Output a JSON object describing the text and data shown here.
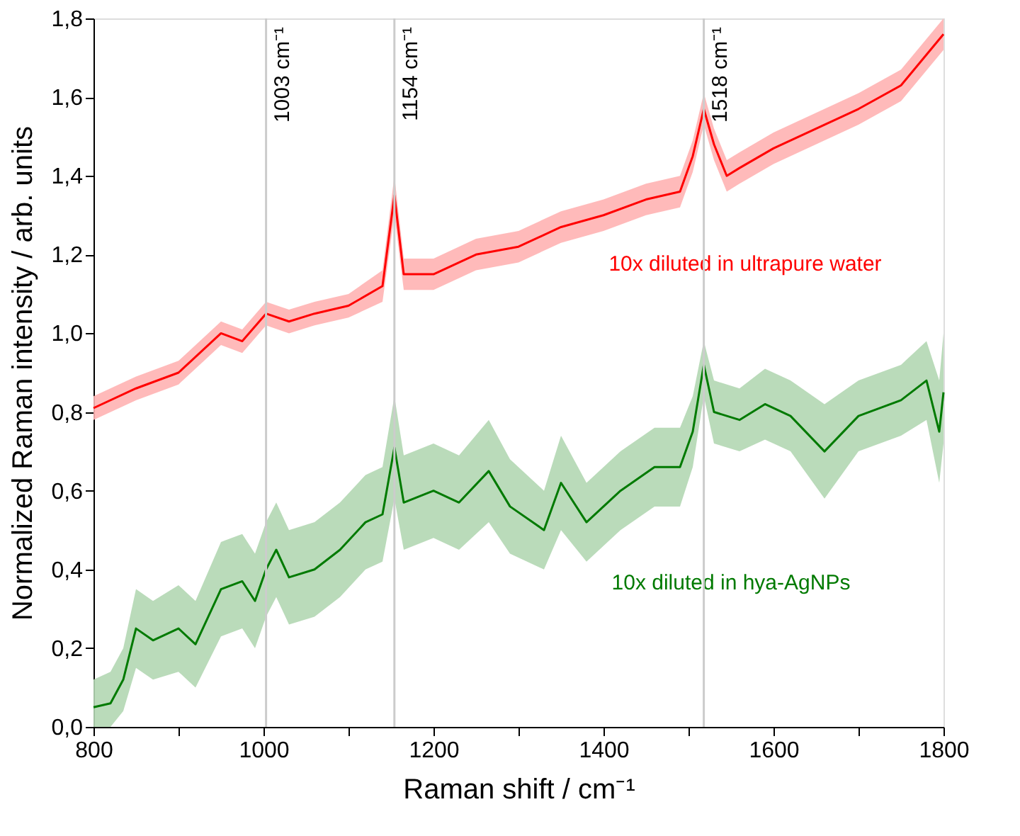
{
  "chart_data": {
    "type": "line",
    "xlabel": "Raman shift / cm⁻¹",
    "ylabel": "Normalized Raman intensity / arb. units",
    "xlim": [
      800,
      1800
    ],
    "ylim": [
      0,
      1.8
    ],
    "xticks": [
      800,
      {
        "value": 900,
        "label": null
      },
      1000,
      {
        "value": 1100,
        "label": null
      },
      1200,
      {
        "value": 1300,
        "label": null
      },
      1400,
      {
        "value": 1500,
        "label": null
      },
      1600,
      {
        "value": 1700,
        "label": null
      },
      1800
    ],
    "yticks": [
      {
        "value": 0,
        "label": "0,0"
      },
      {
        "value": 0.2,
        "label": "0,2"
      },
      {
        "value": 0.4,
        "label": "0,4"
      },
      {
        "value": 0.6,
        "label": "0,6"
      },
      {
        "value": 0.8,
        "label": "0,8"
      },
      {
        "value": 1.0,
        "label": "1,0"
      },
      {
        "value": 1.2,
        "label": "1,2"
      },
      {
        "value": 1.4,
        "label": "1,4"
      },
      {
        "value": 1.6,
        "label": "1,6"
      },
      {
        "value": 1.8,
        "label": "1,8"
      }
    ],
    "grid": false,
    "legend": false,
    "marker": "none",
    "line_style": "solid",
    "x": [
      800,
      850,
      900,
      950,
      975,
      1003,
      1030,
      1060,
      1100,
      1140,
      1154,
      1165,
      1200,
      1250,
      1300,
      1350,
      1400,
      1450,
      1490,
      1505,
      1518,
      1530,
      1545,
      1560,
      1600,
      1650,
      1700,
      1750,
      1800
    ],
    "series": [
      {
        "name": "10x diluted in ultrapure water",
        "color": "#ff0000",
        "values": [
          0.81,
          0.86,
          0.9,
          1.0,
          0.98,
          1.05,
          1.03,
          1.05,
          1.07,
          1.12,
          1.35,
          1.15,
          1.15,
          1.2,
          1.22,
          1.27,
          1.3,
          1.34,
          1.36,
          1.45,
          1.57,
          1.48,
          1.4,
          1.42,
          1.47,
          1.52,
          1.57,
          1.63,
          1.76
        ],
        "lower": [
          0.78,
          0.83,
          0.87,
          0.97,
          0.95,
          1.02,
          1.0,
          1.02,
          1.04,
          1.08,
          1.3,
          1.11,
          1.11,
          1.16,
          1.18,
          1.23,
          1.26,
          1.3,
          1.32,
          1.41,
          1.53,
          1.44,
          1.36,
          1.38,
          1.43,
          1.48,
          1.53,
          1.59,
          1.72
        ],
        "upper": [
          0.84,
          0.89,
          0.93,
          1.03,
          1.01,
          1.08,
          1.06,
          1.08,
          1.1,
          1.16,
          1.4,
          1.19,
          1.19,
          1.24,
          1.26,
          1.31,
          1.34,
          1.38,
          1.4,
          1.49,
          1.61,
          1.52,
          1.44,
          1.46,
          1.51,
          1.56,
          1.61,
          1.67,
          1.8
        ]
      },
      {
        "name": "10x diluted in hya-AgNPs",
        "color": "#007a00",
        "x": [
          800,
          820,
          835,
          850,
          870,
          900,
          920,
          950,
          975,
          990,
          1003,
          1015,
          1030,
          1060,
          1090,
          1120,
          1140,
          1154,
          1165,
          1200,
          1230,
          1265,
          1290,
          1330,
          1350,
          1380,
          1420,
          1460,
          1490,
          1505,
          1518,
          1530,
          1560,
          1590,
          1620,
          1660,
          1700,
          1750,
          1780,
          1795,
          1800
        ],
        "values": [
          0.05,
          0.06,
          0.12,
          0.25,
          0.22,
          0.25,
          0.21,
          0.35,
          0.37,
          0.32,
          0.4,
          0.45,
          0.38,
          0.4,
          0.45,
          0.52,
          0.54,
          0.71,
          0.57,
          0.6,
          0.57,
          0.65,
          0.56,
          0.5,
          0.62,
          0.52,
          0.6,
          0.66,
          0.66,
          0.75,
          0.92,
          0.8,
          0.78,
          0.82,
          0.79,
          0.7,
          0.79,
          0.83,
          0.88,
          0.75,
          0.85
        ],
        "lower": [
          0.0,
          0.0,
          0.04,
          0.15,
          0.12,
          0.14,
          0.1,
          0.23,
          0.25,
          0.2,
          0.28,
          0.33,
          0.26,
          0.28,
          0.33,
          0.4,
          0.42,
          0.58,
          0.45,
          0.48,
          0.45,
          0.52,
          0.44,
          0.4,
          0.5,
          0.42,
          0.5,
          0.56,
          0.56,
          0.66,
          0.84,
          0.72,
          0.7,
          0.73,
          0.7,
          0.58,
          0.7,
          0.74,
          0.78,
          0.62,
          0.72
        ],
        "upper": [
          0.12,
          0.14,
          0.2,
          0.35,
          0.32,
          0.36,
          0.32,
          0.47,
          0.49,
          0.44,
          0.52,
          0.57,
          0.5,
          0.52,
          0.57,
          0.64,
          0.66,
          0.84,
          0.69,
          0.72,
          0.69,
          0.78,
          0.68,
          0.6,
          0.74,
          0.62,
          0.7,
          0.76,
          0.76,
          0.84,
          0.98,
          0.88,
          0.86,
          0.91,
          0.88,
          0.82,
          0.88,
          0.92,
          0.98,
          0.88,
          1.0
        ]
      }
    ],
    "ref_lines": [
      {
        "axis": "x",
        "value": 1003,
        "label": "1003 cm⁻¹",
        "color": "#cccccc"
      },
      {
        "axis": "x",
        "value": 1154,
        "label": "1154 cm⁻¹",
        "color": "#cccccc"
      },
      {
        "axis": "x",
        "value": 1518,
        "label": "1518 cm⁻¹",
        "color": "#cccccc"
      }
    ]
  }
}
